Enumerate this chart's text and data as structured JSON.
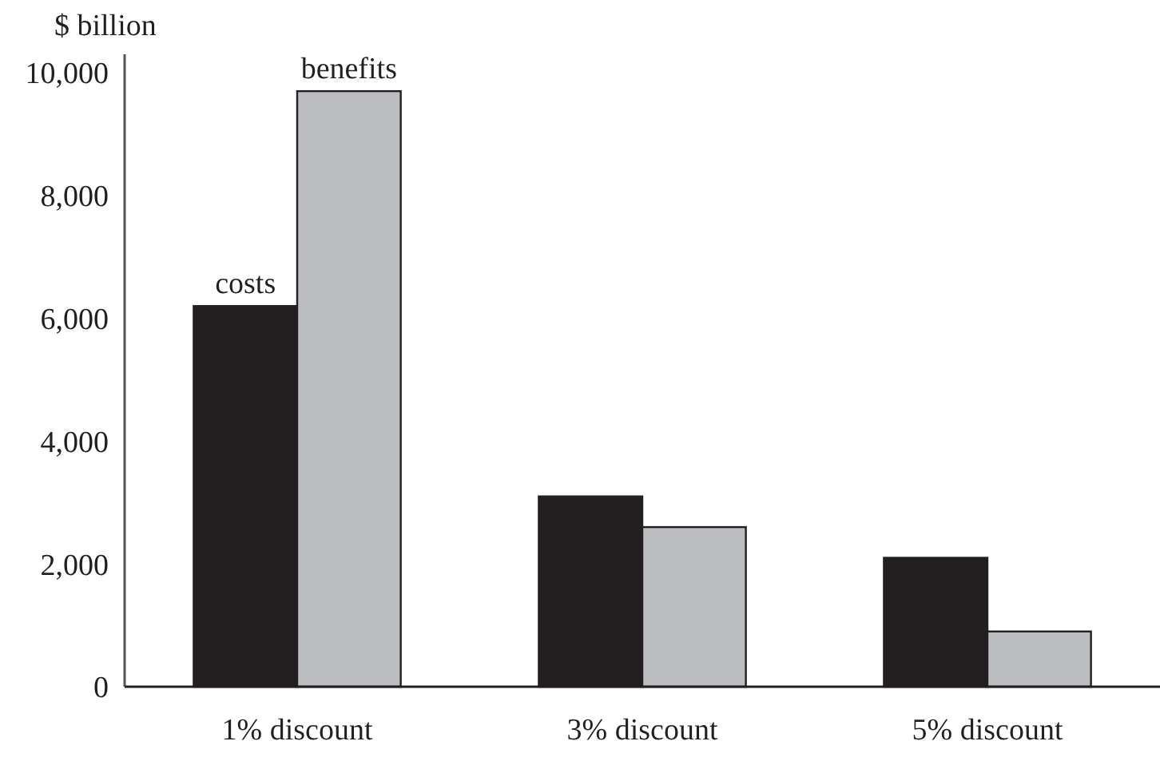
{
  "chart_data": {
    "type": "bar",
    "ylabel": "$ billion",
    "categories": [
      "1% discount",
      "3% discount",
      "5% discount"
    ],
    "series": [
      {
        "name": "costs",
        "color": "#231f20",
        "values": [
          6200,
          3100,
          2100
        ]
      },
      {
        "name": "benefits",
        "color": "#bcbdc0",
        "values": [
          9700,
          2600,
          900
        ]
      }
    ],
    "ylim": [
      0,
      10300
    ],
    "yticks": [
      0,
      {
        "value": 2000,
        "label": "2,000"
      },
      {
        "value": 4000,
        "label": "4,000"
      },
      {
        "value": 6000,
        "label": "6,000"
      },
      {
        "value": 8000,
        "label": "8,000"
      },
      {
        "value": 10000,
        "label": "10,000"
      }
    ],
    "grid": false
  }
}
